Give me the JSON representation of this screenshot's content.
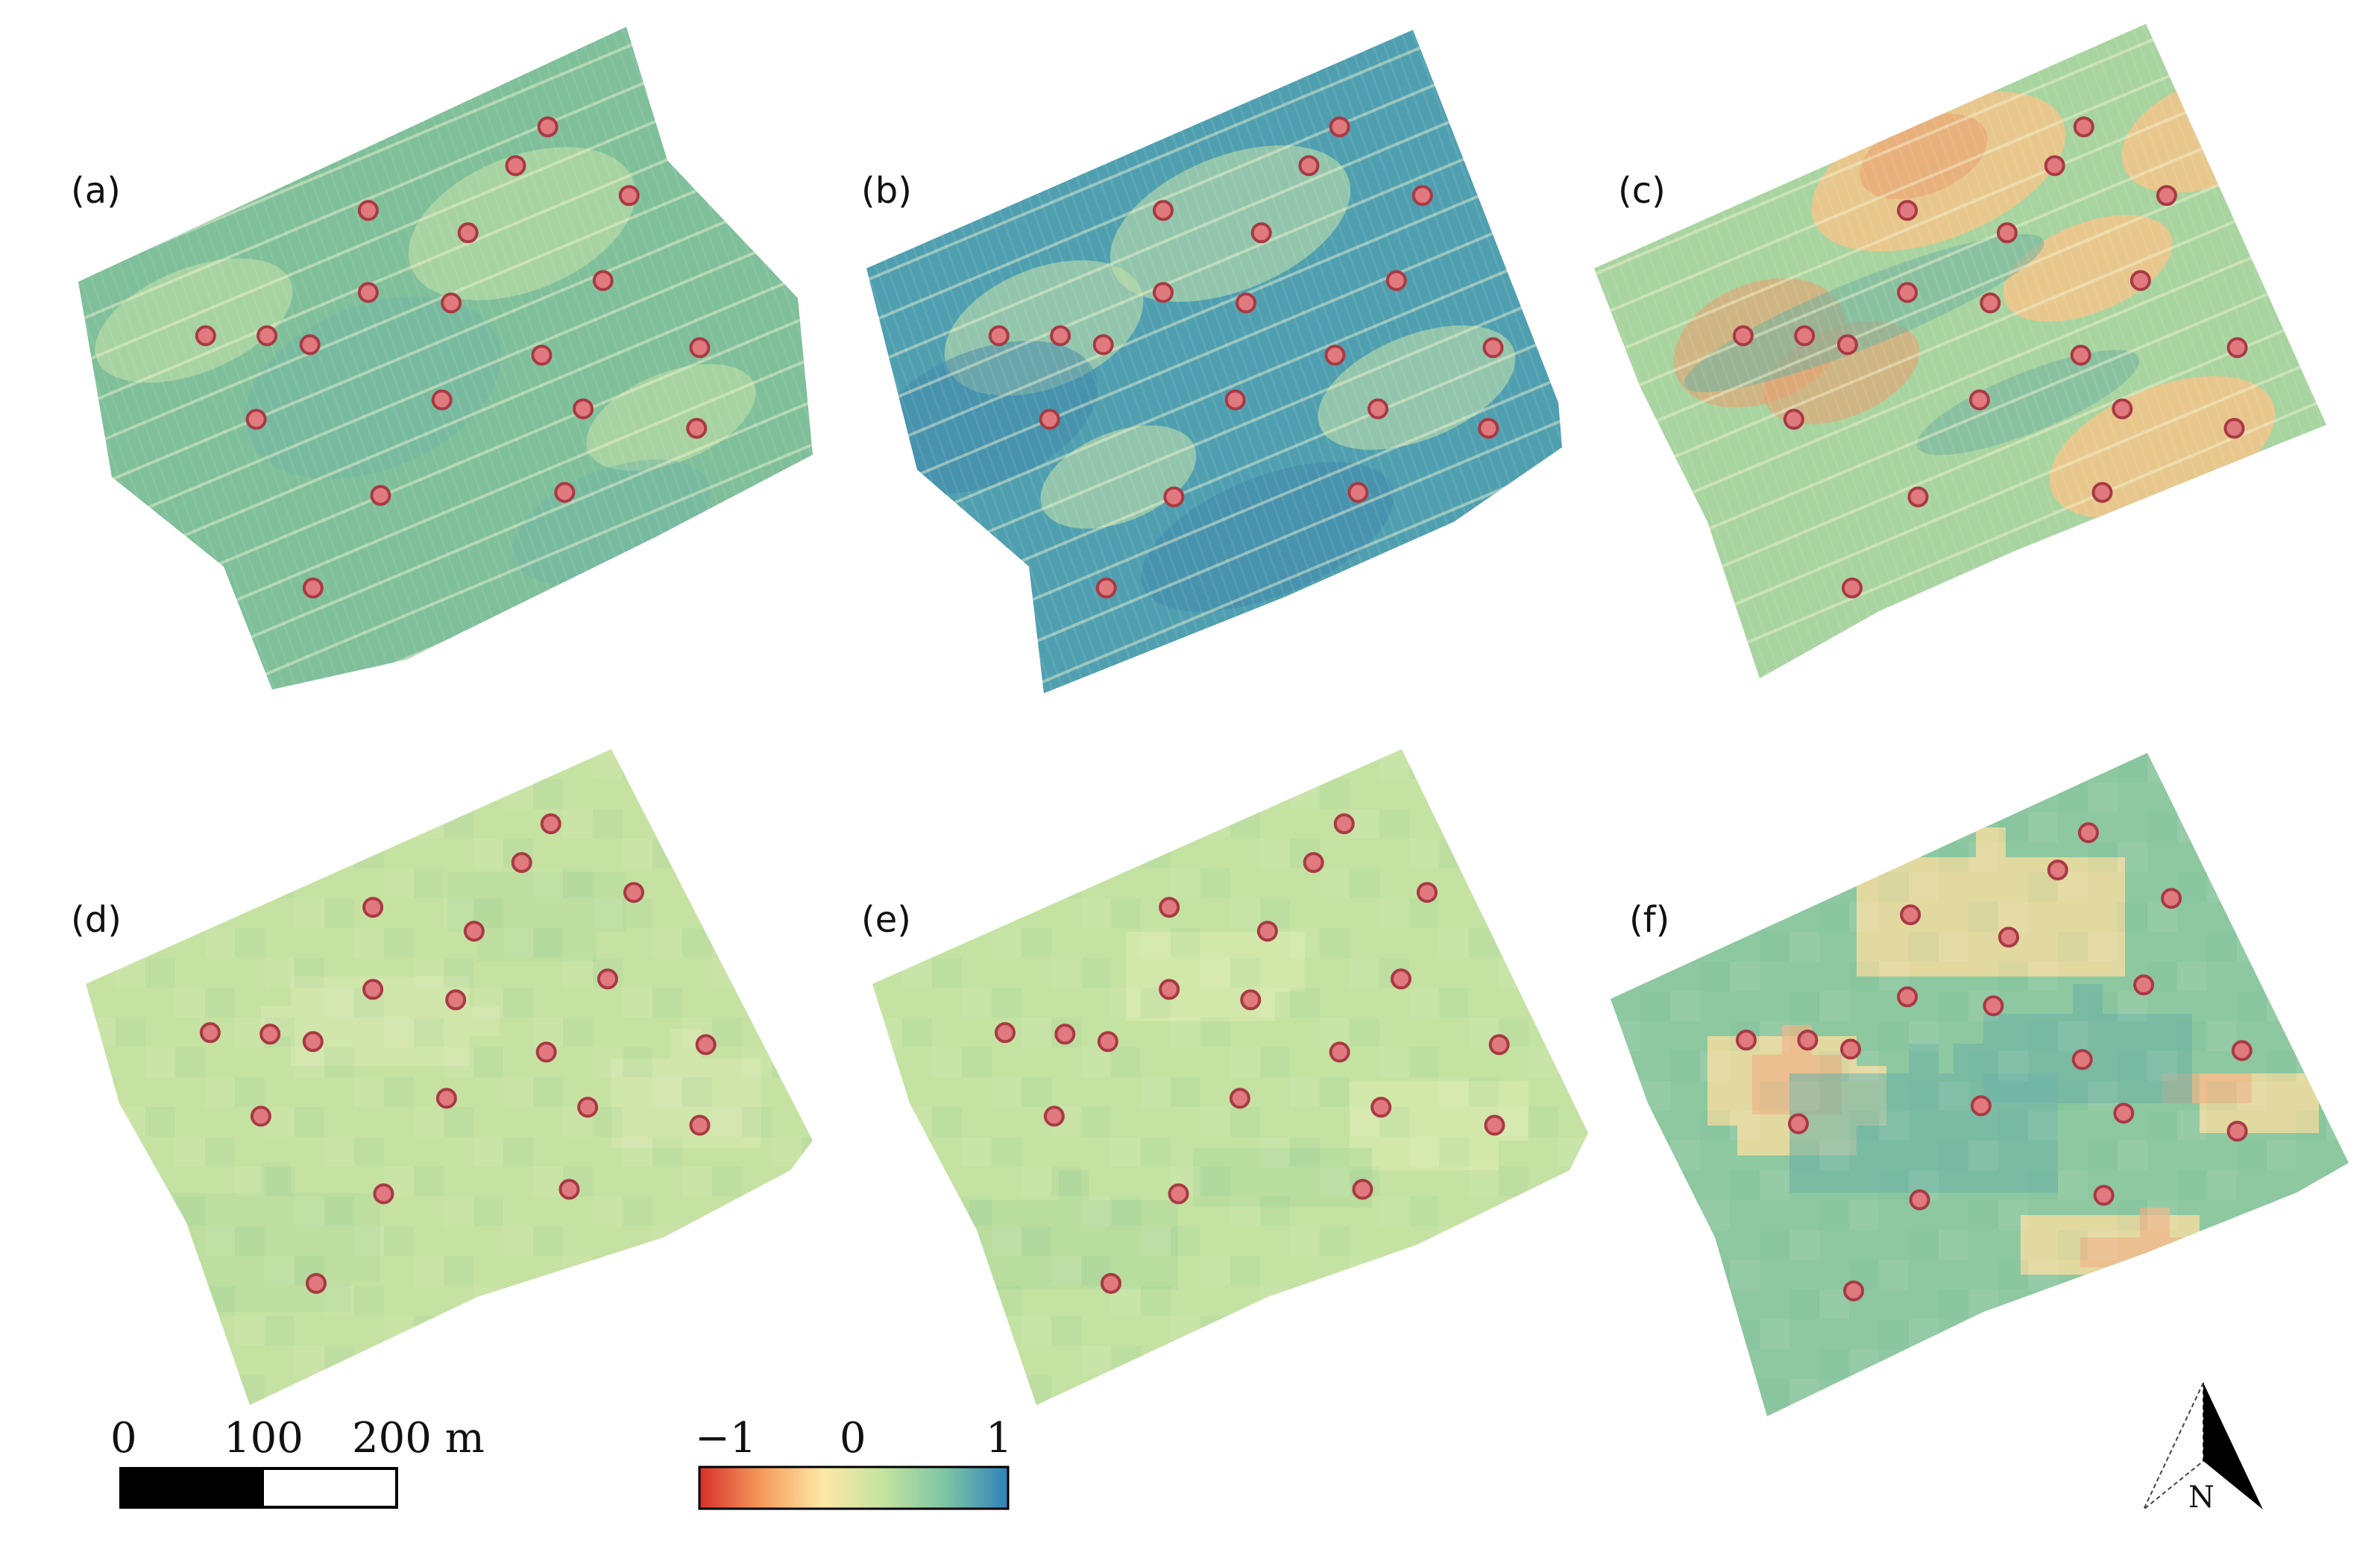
{
  "panels": [
    {
      "id": "a",
      "label": "(a)",
      "kind": "high-res",
      "base": "#7fbf9a",
      "patches": [
        {
          "c": "#c7e3a8",
          "o": 0.55
        },
        {
          "c": "#6fb3a6",
          "o": 0.45
        }
      ]
    },
    {
      "id": "b",
      "label": "(b)",
      "kind": "high-res",
      "base": "#4f9fb0",
      "patches": [
        {
          "c": "#bfe0a8",
          "o": 0.6
        },
        {
          "c": "#3f85aa",
          "o": 0.5
        }
      ]
    },
    {
      "id": "c",
      "label": "(c)",
      "kind": "high-res",
      "base": "#a8d4a0",
      "patches": [
        {
          "c": "#f3c48a",
          "o": 0.85
        },
        {
          "c": "#e8a070",
          "o": 0.6
        },
        {
          "c": "#6fb0a0",
          "o": 0.55
        }
      ]
    },
    {
      "id": "d",
      "label": "(d)",
      "kind": "pixelated",
      "base": "#c6e2a2",
      "patches": [
        {
          "c": "#d8eab0",
          "o": 0.6
        },
        {
          "c": "#b3d99c",
          "o": 0.5
        }
      ]
    },
    {
      "id": "e",
      "label": "(e)",
      "kind": "pixelated",
      "base": "#c4e2a2",
      "patches": [
        {
          "c": "#dcecb0",
          "o": 0.6
        },
        {
          "c": "#aed79c",
          "o": 0.5
        }
      ]
    },
    {
      "id": "f",
      "label": "(f)",
      "kind": "pixelated",
      "base": "#8dc8a0",
      "patches": [
        {
          "c": "#f1dca0",
          "o": 0.85
        },
        {
          "c": "#efb487",
          "o": 0.7
        },
        {
          "c": "#6fb3a6",
          "o": 0.6
        }
      ]
    }
  ],
  "scale_bar": {
    "ticks": [
      "0",
      "100",
      "200 m"
    ]
  },
  "colorbar": {
    "ticks": [
      "−1",
      "0",
      "1"
    ],
    "min": -1,
    "max": 1,
    "colors": [
      "#d7302c",
      "#f59a5b",
      "#fde8a6",
      "#c3e3a0",
      "#7cc4a4",
      "#3281bd"
    ]
  },
  "north_arrow": {
    "label": "N"
  }
}
